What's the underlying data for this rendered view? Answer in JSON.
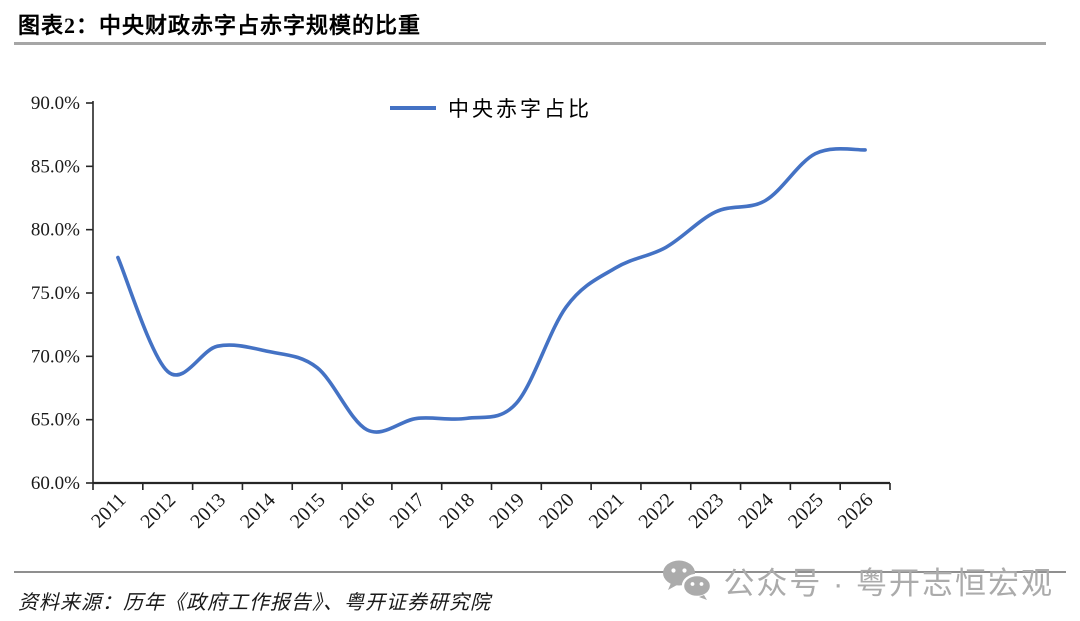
{
  "page": {
    "title": "图表2：中央财政赤字占赤字规模的比重",
    "source": "资料来源：历年《政府工作报告》、粤开证券研究院",
    "watermark": "公众号 · 粤开志恒宏观"
  },
  "colors": {
    "line": "#4472C4",
    "axis": "#262626",
    "tick_text": "#1a1a1a",
    "rule_gray": "#a6a6a6",
    "watermark_gray": "#ababab"
  },
  "chart_data": {
    "type": "line",
    "title": "",
    "xlabel": "",
    "ylabel": "",
    "legend_entries": [
      "中央赤字占比"
    ],
    "legend_position": "top-center",
    "grid": false,
    "categories": [
      "2011",
      "2012",
      "2013",
      "2014",
      "2015",
      "2016",
      "2017",
      "2018",
      "2019",
      "2020",
      "2021",
      "2022",
      "2023",
      "2024",
      "2025",
      "2026"
    ],
    "series": [
      {
        "name": "中央赤字占比",
        "color": "#4472C4",
        "values": [
          77.8,
          68.8,
          70.8,
          70.4,
          69.1,
          64.2,
          65.1,
          65.1,
          66.3,
          73.9,
          77.0,
          78.6,
          81.4,
          82.3,
          86.0,
          86.3
        ]
      }
    ],
    "ylim": [
      60,
      90
    ],
    "ytick_step": 5,
    "ytick_format": "0.0%"
  }
}
